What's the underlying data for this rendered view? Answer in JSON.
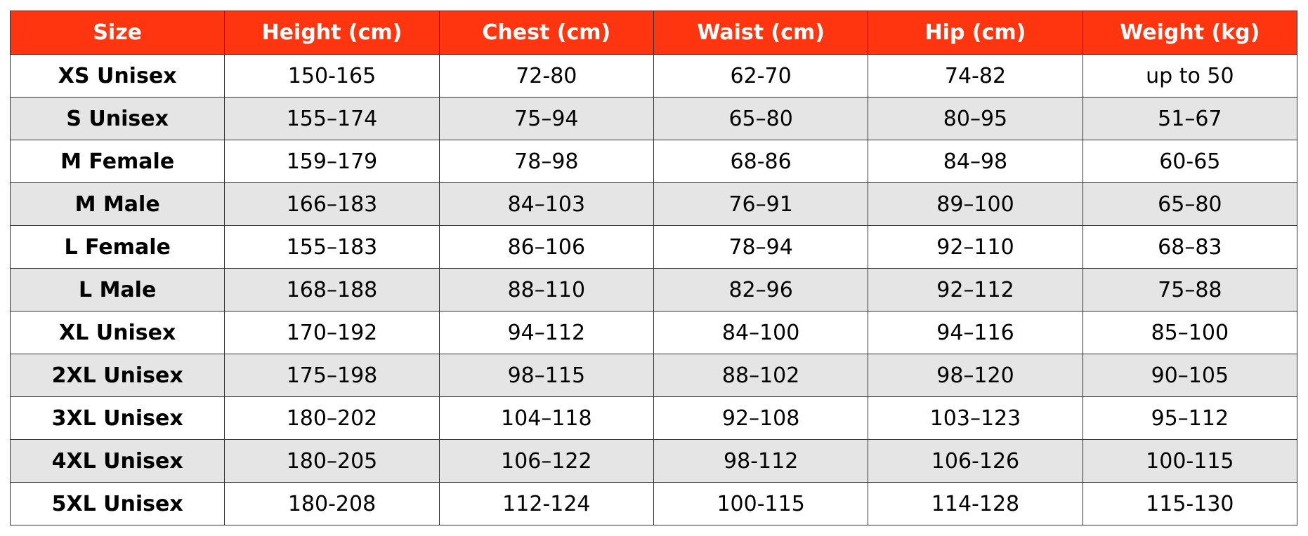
{
  "table": {
    "header": [
      "Size",
      "Height (cm)",
      "Chest (cm)",
      "Waist (cm)",
      "Hip (cm)",
      "Weight (kg)"
    ],
    "rows": [
      [
        "XS Unisex",
        "150-165",
        "72-80",
        "62-70",
        "74-82",
        "up to 50"
      ],
      [
        "S Unisex",
        "155–174",
        "75–94",
        "65–80",
        "80–95",
        "51–67"
      ],
      [
        "M Female",
        "159–179",
        "78–98",
        "68-86",
        "84–98",
        "60-65"
      ],
      [
        "M Male",
        "166–183",
        "84–103",
        "76–91",
        "89–100",
        "65–80"
      ],
      [
        "L Female",
        "155–183",
        "86–106",
        "78–94",
        "92–110",
        "68–83"
      ],
      [
        "L Male",
        "168–188",
        "88–110",
        "82–96",
        "92–112",
        "75–88"
      ],
      [
        "XL Unisex",
        "170–192",
        "94–112",
        "84–100",
        "94–116",
        "85–100"
      ],
      [
        "2XL Unisex",
        "175–198",
        "98–115",
        "88–102",
        "98–120",
        "90–105"
      ],
      [
        "3XL Unisex",
        "180–202",
        "104–118",
        "92–108",
        "103–123",
        "95–112"
      ],
      [
        "4XL Unisex",
        "180–205",
        "106–122",
        "98-112",
        "106-126",
        "100-115"
      ],
      [
        "5XL Unisex",
        "180-208",
        "112-124",
        "100-115",
        "114-128",
        "115-130"
      ]
    ]
  }
}
